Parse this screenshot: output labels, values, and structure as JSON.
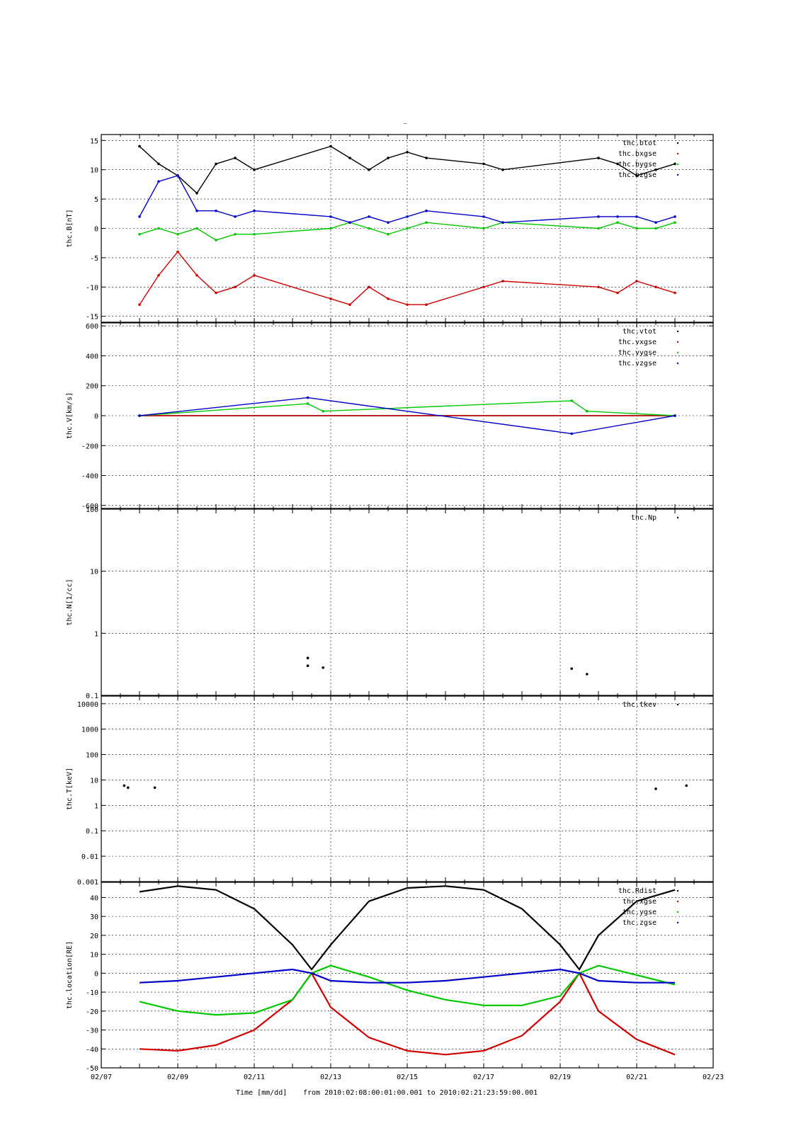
{
  "figure_title": "_",
  "x_axis": {
    "title": "Time [mm/dd]",
    "range_text": "from 2010:02:08:00:01:00.001  to  2010:02:21:23:59:00.001",
    "tick_labels": [
      "02/07",
      "02/09",
      "02/11",
      "02/13",
      "02/15",
      "02/17",
      "02/19",
      "02/21",
      "02/23"
    ],
    "xlim_days": [
      0,
      16
    ]
  },
  "colors": {
    "black": "#000000",
    "red": "#d00000",
    "green": "#00c800",
    "blue": "#0000c8"
  },
  "chart_data": [
    {
      "type": "scatter",
      "ylabel": "thc.B[nT]",
      "ylim": [
        -16,
        16
      ],
      "yticks": [
        -15,
        -10,
        -5,
        0,
        5,
        10,
        15
      ],
      "scale": "linear",
      "grid": true,
      "legend_position": "top-right",
      "series": [
        {
          "name": "thc.btot",
          "color": "#000000",
          "x": [
            "02/08",
            "02/08.5",
            "02/09",
            "02/09.5",
            "02/10",
            "02/10.5",
            "02/11",
            "02/13",
            "02/13.5",
            "02/14",
            "02/14.5",
            "02/15",
            "02/15.5",
            "02/17",
            "02/17.5",
            "02/20",
            "02/20.5",
            "02/21",
            "02/21.5",
            "02/22"
          ],
          "values": [
            14,
            11,
            9,
            6,
            11,
            12,
            10,
            14,
            12,
            10,
            12,
            13,
            12,
            11,
            10,
            12,
            11,
            9,
            10,
            11
          ]
        },
        {
          "name": "thc.bxgse",
          "color": "#d00000",
          "x": [
            "02/08",
            "02/08.5",
            "02/09",
            "02/09.5",
            "02/10",
            "02/10.5",
            "02/11",
            "02/13",
            "02/13.5",
            "02/14",
            "02/14.5",
            "02/15",
            "02/15.5",
            "02/17",
            "02/17.5",
            "02/20",
            "02/20.5",
            "02/21",
            "02/21.5",
            "02/22"
          ],
          "values": [
            -13,
            -8,
            -4,
            -8,
            -11,
            -10,
            -8,
            -12,
            -13,
            -10,
            -12,
            -13,
            -13,
            -10,
            -9,
            -10,
            -11,
            -9,
            -10,
            -11
          ]
        },
        {
          "name": "thc.bygse",
          "color": "#00c800",
          "x": [
            "02/08",
            "02/08.5",
            "02/09",
            "02/09.5",
            "02/10",
            "02/10.5",
            "02/11",
            "02/13",
            "02/13.5",
            "02/14",
            "02/14.5",
            "02/15",
            "02/15.5",
            "02/17",
            "02/17.5",
            "02/20",
            "02/20.5",
            "02/21",
            "02/21.5",
            "02/22"
          ],
          "values": [
            -1,
            0,
            -1,
            0,
            -2,
            -1,
            -1,
            0,
            1,
            0,
            -1,
            0,
            1,
            0,
            1,
            0,
            1,
            0,
            0,
            1
          ]
        },
        {
          "name": "thc.bzgse",
          "color": "#0000c8",
          "x": [
            "02/08",
            "02/08.5",
            "02/09",
            "02/09.5",
            "02/10",
            "02/10.5",
            "02/11",
            "02/13",
            "02/13.5",
            "02/14",
            "02/14.5",
            "02/15",
            "02/15.5",
            "02/17",
            "02/17.5",
            "02/20",
            "02/20.5",
            "02/21",
            "02/21.5",
            "02/22"
          ],
          "values": [
            2,
            8,
            9,
            3,
            3,
            2,
            3,
            2,
            1,
            2,
            1,
            2,
            3,
            2,
            1,
            2,
            2,
            2,
            1,
            2
          ]
        }
      ]
    },
    {
      "type": "scatter",
      "ylabel": "thc.V[km/s]",
      "ylim": [
        -620,
        620
      ],
      "yticks": [
        -600,
        -400,
        -200,
        0,
        200,
        400,
        600
      ],
      "scale": "linear",
      "grid": true,
      "legend_position": "top-right",
      "series": [
        {
          "name": "thc.vtot",
          "color": "#000000",
          "x": [
            "02/08",
            "02/22"
          ],
          "values": [
            0,
            0
          ]
        },
        {
          "name": "thc.vxgse",
          "color": "#d00000",
          "x": [
            "02/08",
            "02/22"
          ],
          "values": [
            0,
            0
          ]
        },
        {
          "name": "thc.vygse",
          "color": "#00c800",
          "x": [
            "02/08",
            "02/12.4",
            "02/12.8",
            "02/19.3",
            "02/19.7",
            "02/22"
          ],
          "values": [
            0,
            80,
            30,
            100,
            30,
            0
          ]
        },
        {
          "name": "thc.vzgse",
          "color": "#0000c8",
          "x": [
            "02/08",
            "02/12.4",
            "02/19.3",
            "02/22"
          ],
          "values": [
            0,
            120,
            -120,
            0
          ]
        }
      ]
    },
    {
      "type": "scatter",
      "ylabel": "thc.N[1/cc]",
      "ylim": [
        0.1,
        100
      ],
      "yticks": [
        0.1,
        1,
        10,
        100
      ],
      "scale": "log",
      "grid": true,
      "legend_position": "top-right",
      "series": [
        {
          "name": "thc.Np",
          "color": "#000000",
          "x": [
            "02/12.4",
            "02/12.4",
            "02/12.8",
            "02/19.3",
            "02/19.7"
          ],
          "values": [
            0.4,
            0.3,
            0.28,
            0.27,
            0.22
          ]
        }
      ]
    },
    {
      "type": "scatter",
      "ylabel": "thc.T[keV]",
      "ylim": [
        0.001,
        20000
      ],
      "yticks": [
        0.001,
        0.01,
        0.1,
        1,
        10,
        100,
        1000,
        10000
      ],
      "scale": "log",
      "grid": true,
      "legend_position": "top-right",
      "series": [
        {
          "name": "thc.tkev",
          "color": "#000000",
          "x": [
            "02/07.6",
            "02/07.7",
            "02/08.4",
            "02/21.5",
            "02/22.3"
          ],
          "values": [
            6,
            5,
            5,
            4.5,
            6
          ]
        }
      ]
    },
    {
      "type": "line",
      "ylabel": "thc.location[RE]",
      "ylim": [
        -50,
        48
      ],
      "yticks": [
        -50,
        -40,
        -30,
        -20,
        -10,
        0,
        10,
        20,
        30,
        40
      ],
      "scale": "linear",
      "grid": true,
      "legend_position": "top-right",
      "series": [
        {
          "name": "thc.Rdist",
          "color": "#000000",
          "x": [
            "02/08",
            "02/09",
            "02/10",
            "02/11",
            "02/12",
            "02/12.5",
            "02/13",
            "02/14",
            "02/15",
            "02/16",
            "02/17",
            "02/18",
            "02/19",
            "02/19.5",
            "02/20",
            "02/21",
            "02/22"
          ],
          "values": [
            43,
            46,
            44,
            34,
            15,
            2,
            15,
            38,
            45,
            46,
            44,
            34,
            15,
            2,
            20,
            38,
            44
          ]
        },
        {
          "name": "thc.xgse",
          "color": "#d00000",
          "x": [
            "02/08",
            "02/09",
            "02/10",
            "02/11",
            "02/12",
            "02/12.5",
            "02/13",
            "02/14",
            "02/15",
            "02/16",
            "02/17",
            "02/18",
            "02/19",
            "02/19.5",
            "02/20",
            "02/21",
            "02/22"
          ],
          "values": [
            -40,
            -41,
            -38,
            -30,
            -14,
            0,
            -18,
            -34,
            -41,
            -43,
            -41,
            -33,
            -15,
            0,
            -20,
            -35,
            -43
          ]
        },
        {
          "name": "thc.ygse",
          "color": "#00c800",
          "x": [
            "02/08",
            "02/09",
            "02/10",
            "02/11",
            "02/12",
            "02/12.5",
            "02/13",
            "02/14",
            "02/15",
            "02/16",
            "02/17",
            "02/18",
            "02/19",
            "02/19.5",
            "02/20",
            "02/21",
            "02/22"
          ],
          "values": [
            -15,
            -20,
            -22,
            -21,
            -14,
            0,
            4,
            -2,
            -9,
            -14,
            -17,
            -17,
            -12,
            0,
            4,
            -1,
            -6
          ]
        },
        {
          "name": "thc.zgse",
          "color": "#0000c8",
          "x": [
            "02/08",
            "02/09",
            "02/10",
            "02/11",
            "02/12",
            "02/12.5",
            "02/13",
            "02/14",
            "02/15",
            "02/16",
            "02/17",
            "02/18",
            "02/19",
            "02/19.5",
            "02/20",
            "02/21",
            "02/22"
          ],
          "values": [
            -5,
            -4,
            -2,
            0,
            2,
            0,
            -4,
            -5,
            -5,
            -4,
            -2,
            0,
            2,
            0,
            -4,
            -5,
            -5
          ]
        }
      ]
    }
  ]
}
